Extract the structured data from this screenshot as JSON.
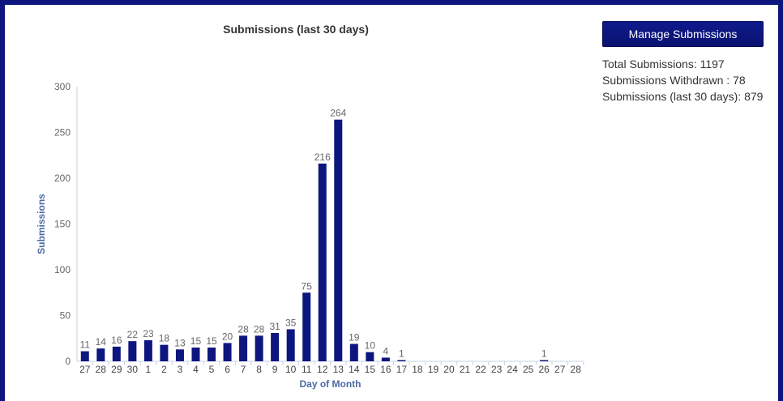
{
  "chart_data": {
    "type": "bar",
    "title": "Submissions (last 30 days)",
    "xlabel": "Day of Month",
    "ylabel": "Submissions",
    "ylim": [
      0,
      300
    ],
    "yticks": [
      0,
      50,
      100,
      150,
      200,
      250,
      300
    ],
    "grid": false,
    "bar_color": "#0d167f",
    "categories": [
      "27",
      "28",
      "29",
      "30",
      "1",
      "2",
      "3",
      "4",
      "5",
      "6",
      "7",
      "8",
      "9",
      "10",
      "11",
      "12",
      "13",
      "14",
      "15",
      "16",
      "17",
      "18",
      "19",
      "20",
      "21",
      "22",
      "23",
      "24",
      "25",
      "26",
      "27",
      "28"
    ],
    "values": [
      11,
      14,
      16,
      22,
      23,
      18,
      13,
      15,
      15,
      20,
      28,
      28,
      31,
      35,
      75,
      216,
      264,
      19,
      10,
      4,
      1,
      0,
      0,
      0,
      0,
      0,
      0,
      0,
      0,
      1,
      0,
      0
    ]
  },
  "manage_button": {
    "label": "Manage Submissions"
  },
  "stats": {
    "total_label": "Total Submissions: ",
    "total_value": "1197",
    "withdrawn_label": "Submissions Withdrawn : ",
    "withdrawn_value": "78",
    "last30_label": "Submissions (last 30 days): ",
    "last30_value": "879"
  },
  "colors": {
    "accent": "#0d167f",
    "axis_label": "#4a6ba3",
    "text": "#333333"
  }
}
